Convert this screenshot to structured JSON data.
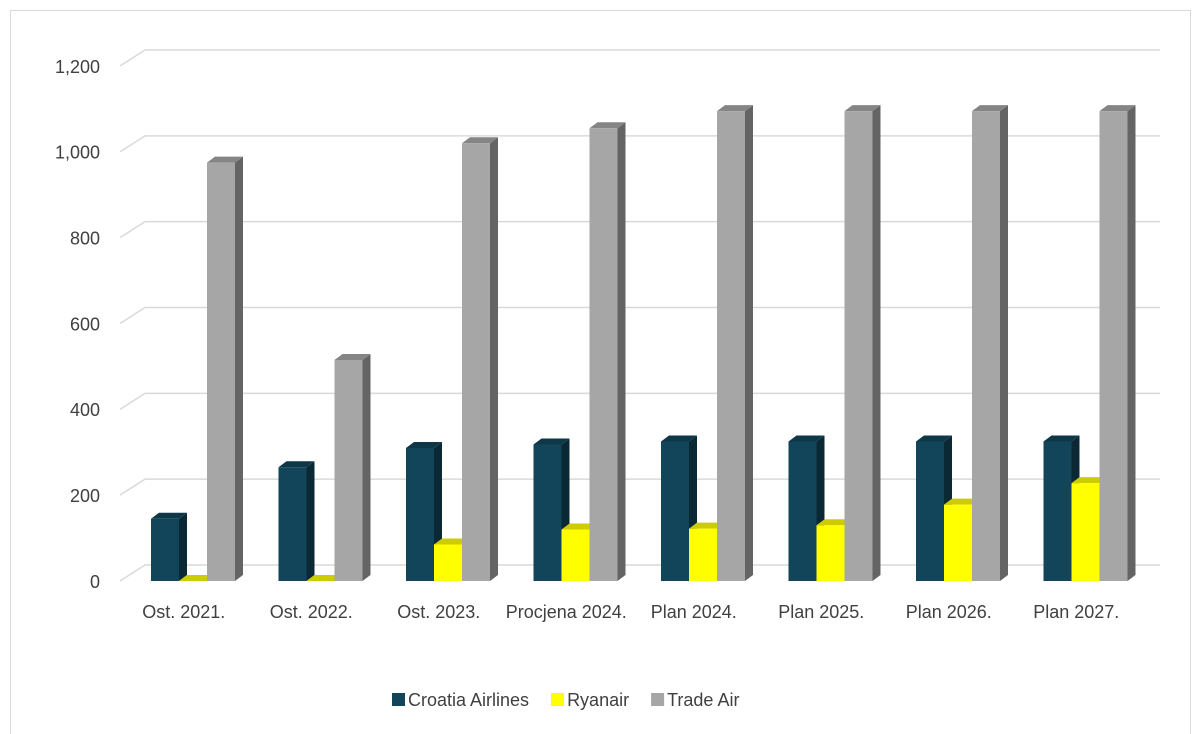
{
  "chart_data": {
    "type": "bar3d",
    "categories": [
      "Ost. 2021.",
      "Ost. 2022.",
      "Ost. 2023.",
      "Procjena 2024.",
      "Plan 2024.",
      "Plan 2025.",
      "Plan 2026.",
      "Plan 2027."
    ],
    "series": [
      {
        "name": "Croatia Airlines",
        "color": "#124559",
        "values": [
          145,
          265,
          310,
          318,
          325,
          325,
          325,
          325
        ]
      },
      {
        "name": "Ryanair",
        "color": "#ffff00",
        "values": [
          0,
          0,
          85,
          120,
          122,
          130,
          178,
          228
        ]
      },
      {
        "name": "Trade Air",
        "color": "#a6a6a6",
        "values": [
          975,
          515,
          1020,
          1055,
          1095,
          1095,
          1095,
          1095
        ]
      }
    ],
    "ylim": [
      0,
      1200
    ],
    "yticks": [
      0,
      200,
      400,
      600,
      800,
      {
        "value": 1000,
        "label": "1,000"
      },
      {
        "value": 1200,
        "label": "1,200"
      }
    ],
    "grid": true,
    "legend": "bottom"
  }
}
